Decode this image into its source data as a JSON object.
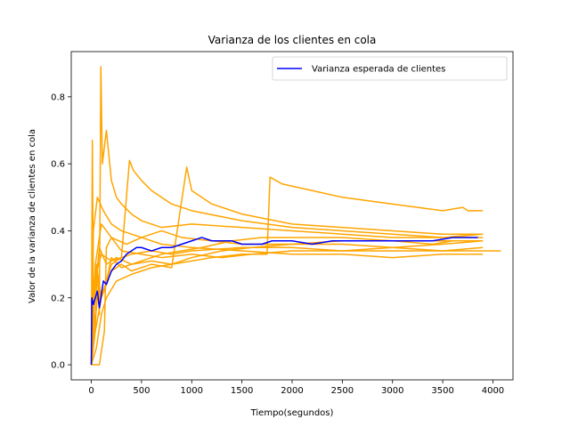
{
  "chart_data": {
    "type": "line",
    "title": "Varianza de los clientes en cola",
    "xlabel": "Tiempo(segundos)",
    "ylabel": "Valor de la varianza de clientes en cola",
    "xlim": [
      -200,
      4200
    ],
    "ylim": [
      -0.045,
      0.935
    ],
    "xticks": [
      0,
      500,
      1000,
      1500,
      2000,
      2500,
      3000,
      3500,
      4000
    ],
    "yticks": [
      0.0,
      0.2,
      0.4,
      0.6,
      0.8
    ],
    "xtick_labels": [
      "0",
      "500",
      "1000",
      "1500",
      "2000",
      "2500",
      "3000",
      "3500",
      "4000"
    ],
    "ytick_labels": [
      "0.0",
      "0.2",
      "0.4",
      "0.6",
      "0.8"
    ],
    "grid": false,
    "legend": {
      "position": "upper-right",
      "entries": [
        "Varianza esperada de clientes"
      ]
    },
    "colors": {
      "simulations": "#FFA500",
      "expected": "#0000FF"
    },
    "series": [
      {
        "values": [
          [
            0,
            0
          ],
          [
            10,
            0.67
          ],
          [
            20,
            0.2
          ],
          [
            40,
            0.1
          ],
          [
            60,
            0.3
          ],
          [
            80,
            0.15
          ],
          [
            95,
            0.89
          ],
          [
            110,
            0.6
          ],
          [
            150,
            0.7
          ],
          [
            200,
            0.55
          ],
          [
            250,
            0.5
          ],
          [
            300,
            0.48
          ],
          [
            400,
            0.45
          ],
          [
            500,
            0.43
          ],
          [
            700,
            0.41
          ],
          [
            1000,
            0.42
          ],
          [
            1500,
            0.41
          ],
          [
            2000,
            0.4
          ],
          [
            2500,
            0.39
          ],
          [
            3000,
            0.38
          ],
          [
            3500,
            0.38
          ],
          [
            3900,
            0.39
          ]
        ]
      },
      {
        "values": [
          [
            0,
            0
          ],
          [
            20,
            0.1
          ],
          [
            50,
            0.3
          ],
          [
            100,
            0.2
          ],
          [
            150,
            0.25
          ],
          [
            200,
            0.3
          ],
          [
            300,
            0.32
          ],
          [
            380,
            0.61
          ],
          [
            420,
            0.58
          ],
          [
            500,
            0.55
          ],
          [
            600,
            0.52
          ],
          [
            800,
            0.48
          ],
          [
            1000,
            0.46
          ],
          [
            1500,
            0.43
          ],
          [
            2000,
            0.41
          ],
          [
            2500,
            0.4
          ],
          [
            3000,
            0.39
          ],
          [
            3500,
            0.38
          ],
          [
            3900,
            0.38
          ]
        ]
      },
      {
        "values": [
          [
            0,
            0
          ],
          [
            30,
            0.2
          ],
          [
            80,
            0.35
          ],
          [
            150,
            0.3
          ],
          [
            250,
            0.32
          ],
          [
            400,
            0.3
          ],
          [
            600,
            0.31
          ],
          [
            800,
            0.3
          ],
          [
            1000,
            0.31
          ],
          [
            1200,
            0.32
          ],
          [
            1500,
            0.33
          ],
          [
            1750,
            0.33
          ],
          [
            1780,
            0.56
          ],
          [
            1900,
            0.54
          ],
          [
            2200,
            0.52
          ],
          [
            2500,
            0.5
          ],
          [
            3000,
            0.48
          ],
          [
            3500,
            0.46
          ],
          [
            3700,
            0.47
          ],
          [
            3750,
            0.46
          ],
          [
            3900,
            0.46
          ]
        ]
      },
      {
        "values": [
          [
            0,
            0
          ],
          [
            40,
            0.1
          ],
          [
            100,
            0.2
          ],
          [
            200,
            0.28
          ],
          [
            300,
            0.3
          ],
          [
            400,
            0.28
          ],
          [
            600,
            0.3
          ],
          [
            800,
            0.29
          ],
          [
            950,
            0.59
          ],
          [
            1000,
            0.52
          ],
          [
            1200,
            0.48
          ],
          [
            1500,
            0.45
          ],
          [
            2000,
            0.42
          ],
          [
            2500,
            0.41
          ],
          [
            3000,
            0.4
          ],
          [
            3500,
            0.39
          ],
          [
            3900,
            0.39
          ]
        ]
      },
      {
        "values": [
          [
            0,
            0
          ],
          [
            50,
            0.05
          ],
          [
            100,
            0.15
          ],
          [
            150,
            0.2
          ],
          [
            250,
            0.25
          ],
          [
            400,
            0.27
          ],
          [
            600,
            0.29
          ],
          [
            800,
            0.3
          ],
          [
            1000,
            0.32
          ],
          [
            1300,
            0.34
          ],
          [
            1600,
            0.35
          ],
          [
            2000,
            0.36
          ],
          [
            2500,
            0.36
          ],
          [
            3000,
            0.35
          ],
          [
            3500,
            0.34
          ],
          [
            3900,
            0.35
          ]
        ]
      },
      {
        "values": [
          [
            0,
            0
          ],
          [
            30,
            0.25
          ],
          [
            100,
            0.33
          ],
          [
            200,
            0.31
          ],
          [
            400,
            0.33
          ],
          [
            600,
            0.34
          ],
          [
            800,
            0.33
          ],
          [
            1000,
            0.34
          ],
          [
            1500,
            0.35
          ],
          [
            2000,
            0.35
          ],
          [
            2500,
            0.34
          ],
          [
            3000,
            0.34
          ],
          [
            3500,
            0.34
          ],
          [
            3900,
            0.34
          ],
          [
            4080,
            0.34
          ]
        ]
      },
      {
        "values": [
          [
            0,
            0
          ],
          [
            20,
            0.4
          ],
          [
            60,
            0.5
          ],
          [
            120,
            0.46
          ],
          [
            200,
            0.42
          ],
          [
            300,
            0.4
          ],
          [
            500,
            0.38
          ],
          [
            700,
            0.36
          ],
          [
            1000,
            0.35
          ],
          [
            1500,
            0.34
          ],
          [
            2000,
            0.33
          ],
          [
            2500,
            0.33
          ],
          [
            3000,
            0.32
          ],
          [
            3500,
            0.33
          ],
          [
            3900,
            0.33
          ]
        ]
      },
      {
        "values": [
          [
            0,
            0
          ],
          [
            40,
            0.3
          ],
          [
            100,
            0.42
          ],
          [
            200,
            0.38
          ],
          [
            350,
            0.36
          ],
          [
            500,
            0.38
          ],
          [
            700,
            0.4
          ],
          [
            900,
            0.38
          ],
          [
            1200,
            0.37
          ],
          [
            1500,
            0.36
          ],
          [
            2000,
            0.36
          ],
          [
            2500,
            0.37
          ],
          [
            3000,
            0.37
          ],
          [
            3500,
            0.37
          ],
          [
            3900,
            0.37
          ]
        ]
      },
      {
        "values": [
          [
            0,
            0
          ],
          [
            60,
            0.2
          ],
          [
            130,
            0.22
          ],
          [
            200,
            0.32
          ],
          [
            300,
            0.29
          ],
          [
            500,
            0.31
          ],
          [
            700,
            0.33
          ],
          [
            900,
            0.34
          ],
          [
            1100,
            0.35
          ],
          [
            1400,
            0.37
          ],
          [
            1700,
            0.38
          ],
          [
            2000,
            0.38
          ],
          [
            2500,
            0.38
          ],
          [
            3000,
            0.37
          ],
          [
            3400,
            0.36
          ],
          [
            3600,
            0.37
          ]
        ]
      },
      {
        "values": [
          [
            0,
            0
          ],
          [
            80,
            0
          ],
          [
            130,
            0.1
          ],
          [
            150,
            0.35
          ],
          [
            200,
            0.38
          ],
          [
            300,
            0.34
          ],
          [
            500,
            0.33
          ],
          [
            700,
            0.32
          ],
          [
            1000,
            0.33
          ],
          [
            1300,
            0.32
          ],
          [
            1600,
            0.33
          ],
          [
            2000,
            0.34
          ],
          [
            2500,
            0.34
          ],
          [
            3000,
            0.35
          ],
          [
            3500,
            0.36
          ],
          [
            3900,
            0.37
          ]
        ]
      },
      {
        "name": "Varianza esperada de clientes",
        "values": [
          [
            0,
            0
          ],
          [
            5,
            0.2
          ],
          [
            20,
            0.18
          ],
          [
            40,
            0.2
          ],
          [
            60,
            0.22
          ],
          [
            80,
            0.17
          ],
          [
            100,
            0.21
          ],
          [
            120,
            0.25
          ],
          [
            150,
            0.24
          ],
          [
            200,
            0.28
          ],
          [
            250,
            0.3
          ],
          [
            300,
            0.31
          ],
          [
            350,
            0.33
          ],
          [
            400,
            0.34
          ],
          [
            450,
            0.35
          ],
          [
            500,
            0.35
          ],
          [
            600,
            0.34
          ],
          [
            700,
            0.35
          ],
          [
            800,
            0.35
          ],
          [
            900,
            0.36
          ],
          [
            1000,
            0.37
          ],
          [
            1100,
            0.38
          ],
          [
            1200,
            0.37
          ],
          [
            1300,
            0.37
          ],
          [
            1400,
            0.37
          ],
          [
            1500,
            0.36
          ],
          [
            1600,
            0.36
          ],
          [
            1700,
            0.36
          ],
          [
            1800,
            0.37
          ],
          [
            2000,
            0.37
          ],
          [
            2200,
            0.36
          ],
          [
            2400,
            0.37
          ],
          [
            2600,
            0.37
          ],
          [
            2800,
            0.37
          ],
          [
            3000,
            0.37
          ],
          [
            3200,
            0.37
          ],
          [
            3400,
            0.37
          ],
          [
            3600,
            0.38
          ],
          [
            3800,
            0.38
          ],
          [
            3850,
            0.38
          ]
        ]
      }
    ]
  }
}
